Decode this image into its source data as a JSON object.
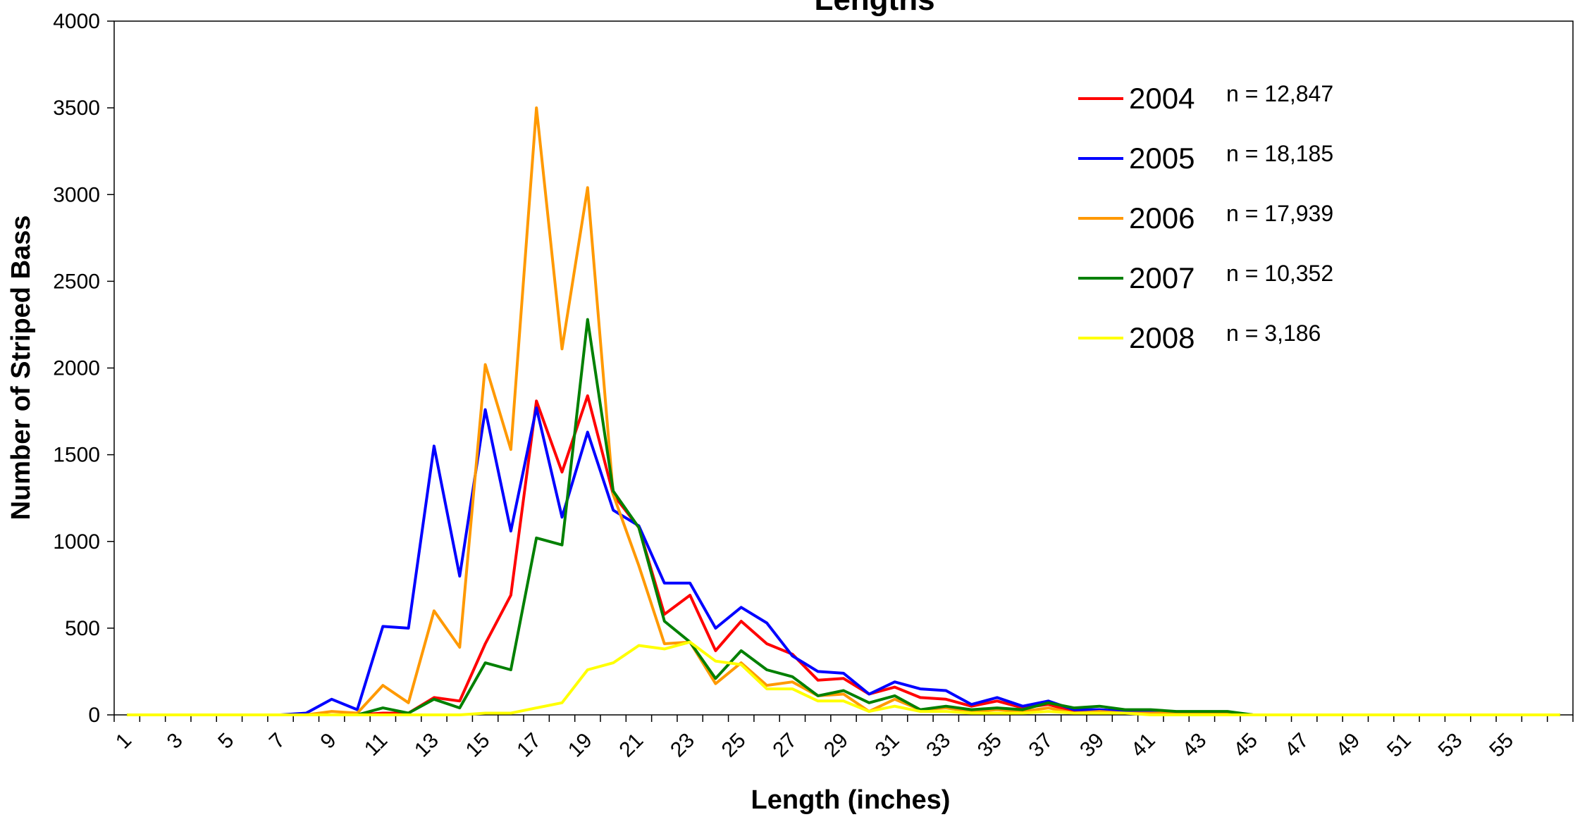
{
  "chart_data": {
    "type": "line",
    "title": "Lengths",
    "xlabel": "Length (inches)",
    "ylabel": "Number of Striped Bass",
    "ylim": [
      0,
      4000
    ],
    "yticks": [
      0,
      500,
      1000,
      1500,
      2000,
      2500,
      3000,
      3500,
      4000
    ],
    "x": [
      1,
      2,
      3,
      4,
      5,
      6,
      7,
      8,
      9,
      10,
      11,
      12,
      13,
      14,
      15,
      16,
      17,
      18,
      19,
      20,
      21,
      22,
      23,
      24,
      25,
      26,
      27,
      28,
      29,
      30,
      31,
      32,
      33,
      34,
      35,
      36,
      37,
      38,
      39,
      40,
      41,
      42,
      43,
      44,
      45,
      46,
      47,
      48,
      49,
      50,
      51,
      52,
      53,
      54,
      55,
      56,
      57
    ],
    "xtick_labels": [
      "1",
      "3",
      "5",
      "7",
      "9",
      "11",
      "13",
      "15",
      "17",
      "19",
      "21",
      "23",
      "25",
      "27",
      "29",
      "31",
      "33",
      "35",
      "37",
      "39",
      "41",
      "43",
      "45",
      "47",
      "49",
      "51",
      "53",
      "55"
    ],
    "grid": false,
    "legend_position": "top-right",
    "series": [
      {
        "name": "2004",
        "n_label": "n = 12,847",
        "color": "#ff0000",
        "values": [
          0,
          0,
          0,
          0,
          0,
          0,
          0,
          0,
          0,
          0,
          10,
          10,
          100,
          80,
          410,
          690,
          1810,
          1400,
          1840,
          1270,
          1080,
          580,
          690,
          370,
          540,
          410,
          350,
          200,
          210,
          120,
          160,
          100,
          90,
          50,
          80,
          40,
          60,
          20,
          30,
          20,
          20,
          10,
          10,
          10,
          0,
          0,
          0,
          0,
          0,
          0,
          0,
          0,
          0,
          0,
          0,
          0,
          0
        ]
      },
      {
        "name": "2005",
        "n_label": "n = 18,185",
        "color": "#0000ff",
        "values": [
          0,
          0,
          0,
          0,
          0,
          0,
          0,
          10,
          90,
          30,
          510,
          500,
          1550,
          800,
          1760,
          1060,
          1770,
          1140,
          1630,
          1180,
          1090,
          760,
          760,
          500,
          620,
          530,
          340,
          250,
          240,
          120,
          190,
          150,
          140,
          60,
          100,
          50,
          80,
          30,
          30,
          20,
          20,
          10,
          10,
          10,
          0,
          0,
          0,
          0,
          0,
          0,
          0,
          0,
          0,
          0,
          0,
          0,
          0
        ]
      },
      {
        "name": "2006",
        "n_label": "n = 17,939",
        "color": "#ff9900",
        "values": [
          0,
          0,
          0,
          0,
          0,
          0,
          0,
          0,
          20,
          10,
          170,
          70,
          600,
          390,
          2020,
          1530,
          3500,
          2110,
          3040,
          1270,
          860,
          410,
          420,
          180,
          300,
          170,
          190,
          110,
          120,
          20,
          90,
          30,
          40,
          20,
          30,
          20,
          40,
          10,
          20,
          10,
          10,
          10,
          10,
          10,
          0,
          0,
          0,
          0,
          0,
          0,
          0,
          0,
          0,
          0,
          0,
          0,
          0
        ]
      },
      {
        "name": "2007",
        "n_label": "n = 10,352",
        "color": "#008000",
        "values": [
          0,
          0,
          0,
          0,
          0,
          0,
          0,
          0,
          0,
          0,
          40,
          10,
          90,
          40,
          300,
          260,
          1020,
          980,
          2280,
          1290,
          1080,
          540,
          420,
          210,
          370,
          260,
          220,
          110,
          140,
          70,
          110,
          30,
          50,
          30,
          40,
          30,
          70,
          40,
          50,
          30,
          30,
          20,
          20,
          20,
          0,
          0,
          0,
          0,
          0,
          0,
          0,
          0,
          0,
          0,
          0,
          0,
          0
        ]
      },
      {
        "name": "2008",
        "n_label": "n = 3,186",
        "color": "#ffff00",
        "values": [
          0,
          0,
          0,
          0,
          0,
          0,
          0,
          0,
          0,
          0,
          0,
          0,
          0,
          0,
          10,
          10,
          40,
          70,
          260,
          300,
          400,
          380,
          420,
          310,
          290,
          150,
          150,
          80,
          80,
          20,
          50,
          20,
          20,
          10,
          10,
          10,
          20,
          10,
          10,
          10,
          0,
          0,
          0,
          0,
          0,
          0,
          0,
          0,
          0,
          0,
          0,
          0,
          0,
          0,
          0,
          0,
          0
        ]
      }
    ]
  }
}
